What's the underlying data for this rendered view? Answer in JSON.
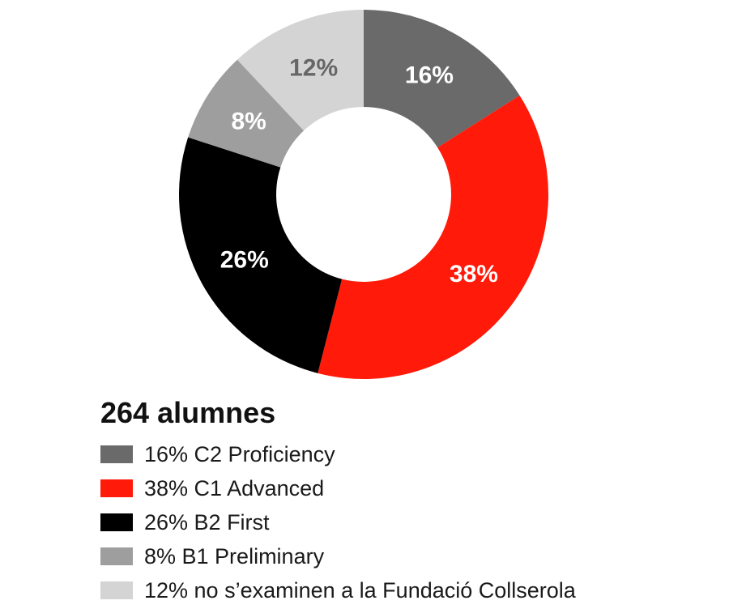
{
  "chart_data": {
    "type": "pie",
    "variant": "donut",
    "title": "264 alumnes",
    "slices": [
      {
        "label": "16% C2 Proficiency",
        "value": 16,
        "display": "16%",
        "color": "#6a6a6a",
        "label_color": "#ffffff"
      },
      {
        "label": "38% C1 Advanced",
        "value": 38,
        "display": "38%",
        "color": "#ff1a0a",
        "label_color": "#ffffff"
      },
      {
        "label": "26% B2 First",
        "value": 26,
        "display": "26%",
        "color": "#000000",
        "label_color": "#ffffff"
      },
      {
        "label": "8% B1 Preliminary",
        "value": 8,
        "display": "8%",
        "color": "#9e9e9e",
        "label_color": "#ffffff"
      },
      {
        "label": "12% no s’examinen a la Fundació Collserola",
        "value": 12,
        "display": "12%",
        "color": "#d4d4d4",
        "label_color": "#666666"
      }
    ],
    "legend_position": "bottom-left"
  }
}
